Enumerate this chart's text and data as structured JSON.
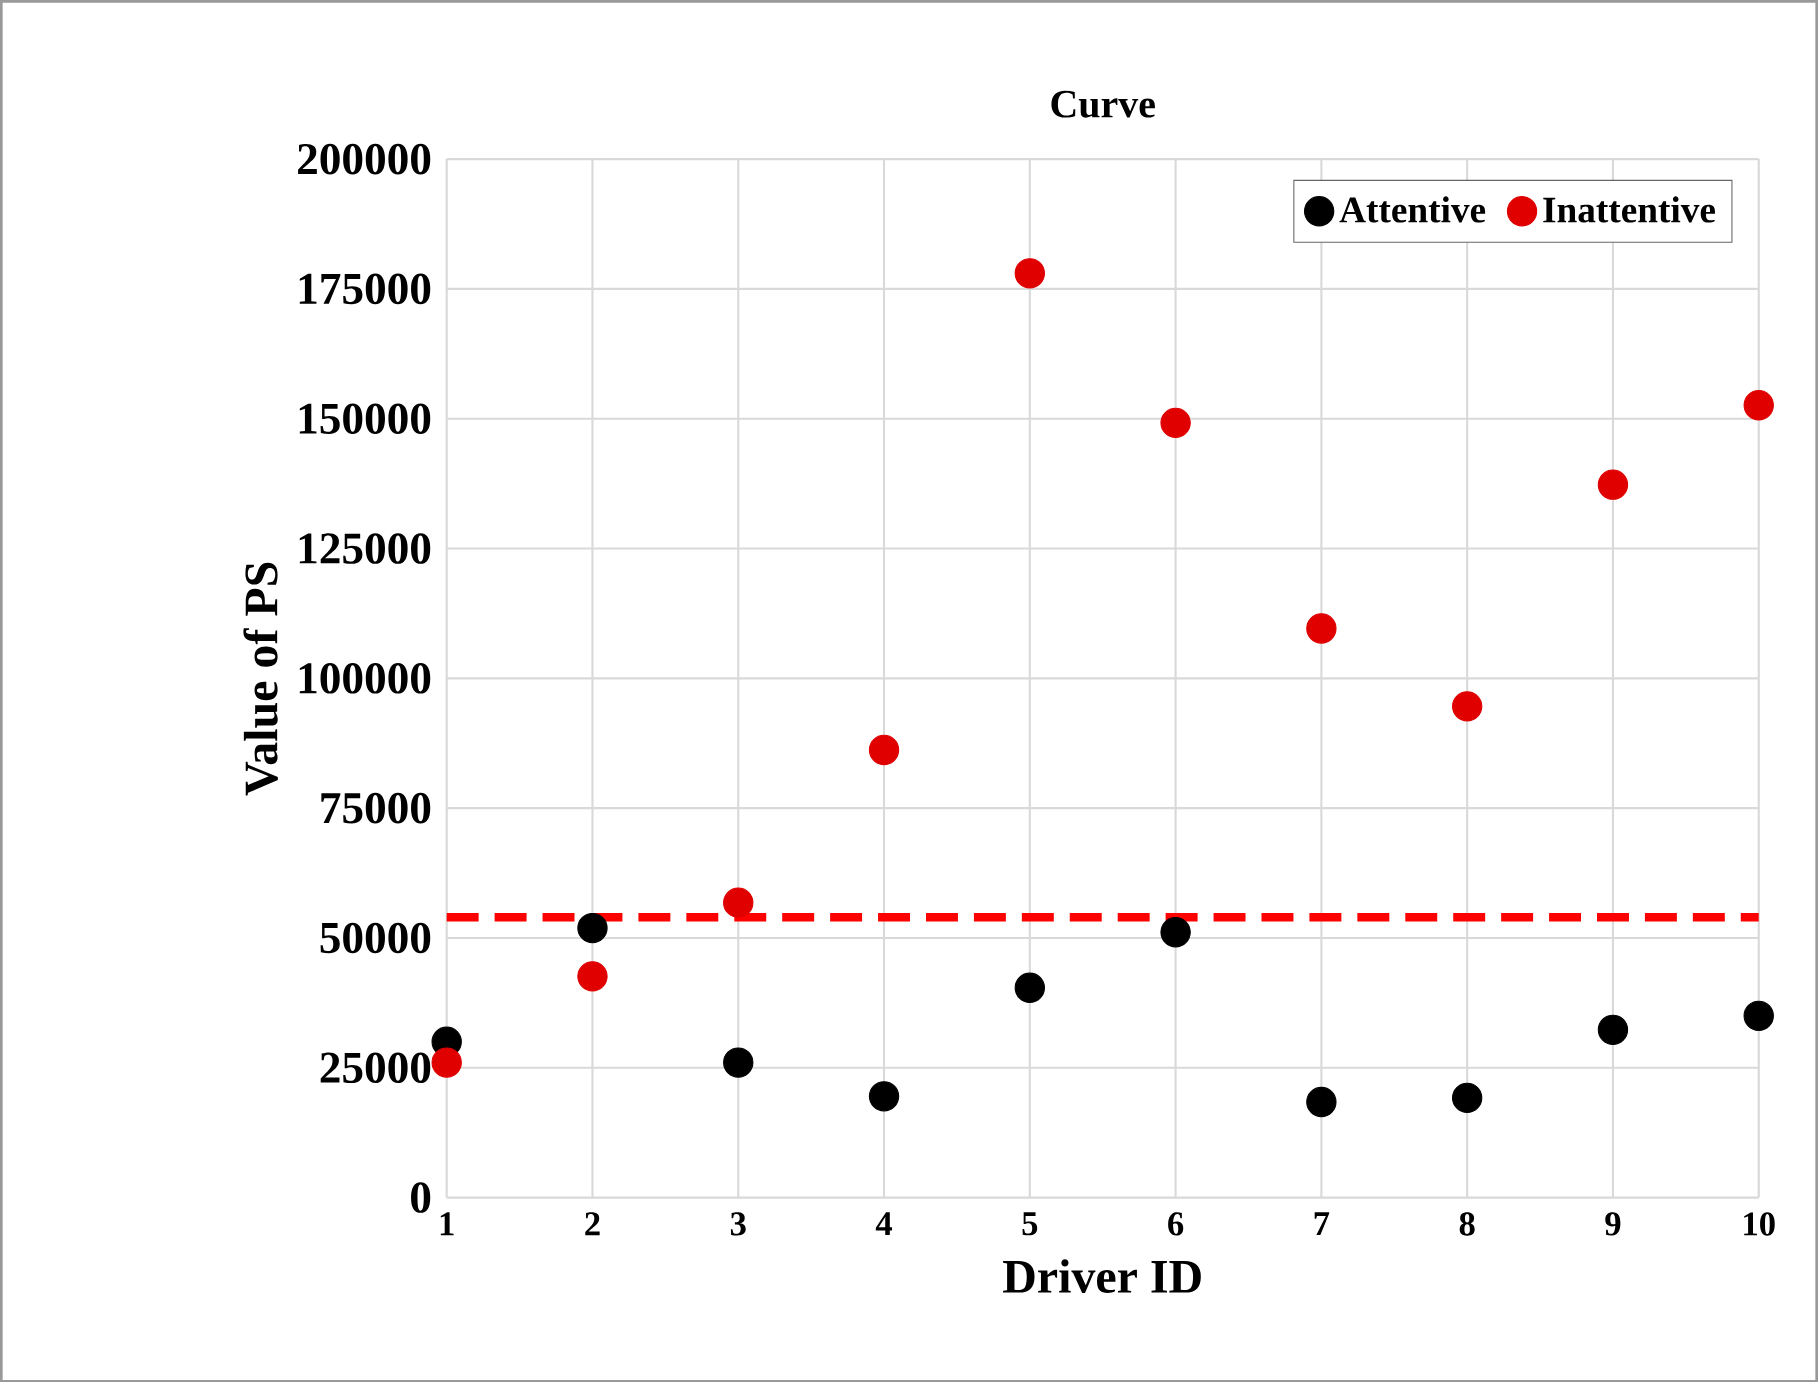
{
  "chart_data": {
    "type": "scatter",
    "title": "Curve",
    "xlabel": "Driver ID",
    "ylabel": "Value of PS",
    "x": [
      1,
      2,
      3,
      4,
      5,
      6,
      7,
      8,
      9,
      10
    ],
    "series": [
      {
        "name": "Attentive",
        "color": "#000000",
        "values": [
          30000,
          51900,
          26000,
          19500,
          40400,
          51100,
          18400,
          19200,
          32300,
          35000
        ]
      },
      {
        "name": "Inattentive",
        "color": "#e00000",
        "values": [
          26000,
          42600,
          56800,
          86200,
          178000,
          149200,
          109600,
          94600,
          137300,
          152600
        ]
      }
    ],
    "xlim": [
      1,
      10
    ],
    "xticks": [
      1,
      2,
      3,
      4,
      5,
      6,
      7,
      8,
      9,
      10
    ],
    "ylim": [
      0,
      200000
    ],
    "yticks": [
      0,
      25000,
      50000,
      75000,
      100000,
      125000,
      150000,
      175000,
      200000
    ],
    "ref_lines": [
      {
        "axis": "y",
        "value": 54000,
        "color": "#ff0000",
        "line_style": "dashed"
      }
    ],
    "grid": true,
    "legend": "top right",
    "marker": "circle"
  }
}
